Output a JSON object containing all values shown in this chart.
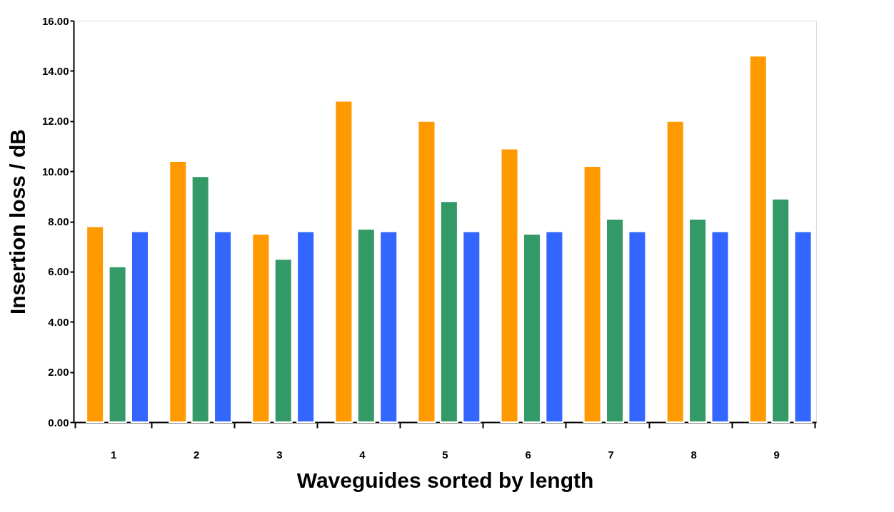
{
  "chart_data": {
    "type": "bar",
    "xlabel": "Waveguides sorted by length",
    "ylabel": "Insertion loss / dB",
    "categories": [
      "1",
      "2",
      "3",
      "4",
      "5",
      "6",
      "7",
      "8",
      "9"
    ],
    "series": [
      {
        "color": "#ff9900",
        "values": [
          7.8,
          10.4,
          7.5,
          12.8,
          12.0,
          10.9,
          10.2,
          12.0,
          14.6
        ]
      },
      {
        "color": "#339966",
        "values": [
          6.2,
          9.8,
          6.5,
          7.7,
          8.8,
          7.5,
          8.1,
          8.1,
          8.9
        ]
      },
      {
        "color": "#3366ff",
        "values": [
          7.6,
          7.6,
          7.6,
          7.6,
          7.6,
          7.6,
          7.6,
          7.6,
          7.6
        ]
      }
    ],
    "ylim": [
      0,
      16
    ],
    "yticks": [
      {
        "value": 0,
        "label": "0.00"
      },
      {
        "value": 2,
        "label": "2.00"
      },
      {
        "value": 4,
        "label": "4.00"
      },
      {
        "value": 6,
        "label": "6.00"
      },
      {
        "value": 8,
        "label": "8.00"
      },
      {
        "value": 10,
        "label": "10.00"
      },
      {
        "value": 12,
        "label": "12.00"
      },
      {
        "value": 14,
        "label": "14.00"
      },
      {
        "value": 16,
        "label": "16.00"
      }
    ],
    "grid": false,
    "legend": false
  }
}
